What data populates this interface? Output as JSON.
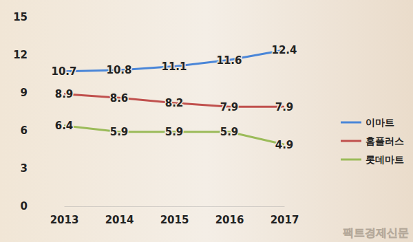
{
  "chart_data": {
    "type": "line",
    "categories": [
      "2013",
      "2014",
      "2015",
      "2016",
      "2017"
    ],
    "series": [
      {
        "name": "이마트",
        "color": "#4a86d8",
        "values": [
          10.7,
          10.8,
          11.1,
          11.6,
          12.4
        ]
      },
      {
        "name": "홈플러스",
        "color": "#c0504d",
        "values": [
          8.9,
          8.6,
          8.2,
          7.9,
          7.9
        ]
      },
      {
        "name": "롯데마트",
        "color": "#9bbb59",
        "values": [
          6.4,
          5.9,
          5.9,
          5.9,
          4.9
        ]
      }
    ],
    "ylim": [
      0,
      15
    ],
    "yticks": [
      0,
      3,
      6,
      9,
      12,
      15
    ],
    "grid": false,
    "legend": "right",
    "data_labels": true,
    "annotations": [
      "팩트경제신문"
    ]
  }
}
